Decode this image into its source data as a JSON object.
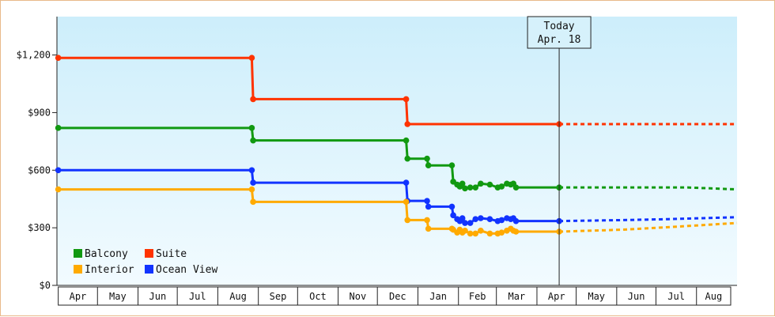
{
  "chart_data": {
    "type": "line",
    "title": "",
    "xlabel": "",
    "ylabel": "",
    "ylim": [
      0,
      1400
    ],
    "yticks": [
      {
        "value": 0,
        "label": "$0"
      },
      {
        "value": 300,
        "label": "$300"
      },
      {
        "value": 600,
        "label": "$600"
      },
      {
        "value": 900,
        "label": "$900"
      },
      {
        "value": 1200,
        "label": "$1,200"
      }
    ],
    "x_range": [
      "2011-03-31",
      "2012-09-01"
    ],
    "x_month_labels": [
      {
        "label": "Apr",
        "start": "2011-04-01"
      },
      {
        "label": "May",
        "start": "2011-05-01"
      },
      {
        "label": "Jun",
        "start": "2011-06-01"
      },
      {
        "label": "Jul",
        "start": "2011-07-01"
      },
      {
        "label": "Aug",
        "start": "2011-08-01"
      },
      {
        "label": "Sep",
        "start": "2011-09-01"
      },
      {
        "label": "Oct",
        "start": "2011-10-01"
      },
      {
        "label": "Nov",
        "start": "2011-11-01"
      },
      {
        "label": "Dec",
        "start": "2011-12-01"
      },
      {
        "label": "Jan",
        "start": "2012-01-01"
      },
      {
        "label": "Feb",
        "start": "2012-02-01"
      },
      {
        "label": "Mar",
        "start": "2012-03-01"
      },
      {
        "label": "Apr",
        "start": "2012-04-01"
      },
      {
        "label": "May",
        "start": "2012-05-01"
      },
      {
        "label": "Jun",
        "start": "2012-06-01"
      },
      {
        "label": "Jul",
        "start": "2012-07-01"
      },
      {
        "label": "Aug",
        "start": "2012-08-01"
      }
    ],
    "grid": false,
    "legend_position": "bottom-left",
    "today_marker": {
      "label_line1": "Today",
      "label_line2": "Apr. 18",
      "date": "2012-04-18"
    },
    "series": [
      {
        "name": "Suite",
        "color": "#ff3300",
        "points": [
          {
            "date": "2011-04-01",
            "value": 1185
          },
          {
            "date": "2011-08-27",
            "value": 1185
          },
          {
            "date": "2011-08-28",
            "value": 970
          },
          {
            "date": "2011-12-23",
            "value": 970
          },
          {
            "date": "2011-12-24",
            "value": 840
          },
          {
            "date": "2012-04-18",
            "value": 840
          }
        ],
        "forecast": [
          {
            "date": "2012-04-18",
            "value": 840
          },
          {
            "date": "2012-09-01",
            "value": 840
          }
        ]
      },
      {
        "name": "Balcony",
        "color": "#119911",
        "points": [
          {
            "date": "2011-04-01",
            "value": 820
          },
          {
            "date": "2011-08-27",
            "value": 820
          },
          {
            "date": "2011-08-28",
            "value": 755
          },
          {
            "date": "2011-12-23",
            "value": 755
          },
          {
            "date": "2011-12-24",
            "value": 660
          },
          {
            "date": "2012-01-08",
            "value": 660
          },
          {
            "date": "2012-01-09",
            "value": 625
          },
          {
            "date": "2012-01-27",
            "value": 625
          },
          {
            "date": "2012-01-28",
            "value": 540
          },
          {
            "date": "2012-01-31",
            "value": 525
          },
          {
            "date": "2012-02-02",
            "value": 515
          },
          {
            "date": "2012-02-04",
            "value": 530
          },
          {
            "date": "2012-02-06",
            "value": 505
          },
          {
            "date": "2012-02-10",
            "value": 510
          },
          {
            "date": "2012-02-14",
            "value": 510
          },
          {
            "date": "2012-02-18",
            "value": 530
          },
          {
            "date": "2012-02-25",
            "value": 525
          },
          {
            "date": "2012-03-02",
            "value": 510
          },
          {
            "date": "2012-03-05",
            "value": 515
          },
          {
            "date": "2012-03-09",
            "value": 530
          },
          {
            "date": "2012-03-12",
            "value": 525
          },
          {
            "date": "2012-03-14",
            "value": 530
          },
          {
            "date": "2012-03-16",
            "value": 510
          },
          {
            "date": "2012-04-18",
            "value": 510
          }
        ],
        "forecast": [
          {
            "date": "2012-04-18",
            "value": 510
          },
          {
            "date": "2012-07-25",
            "value": 510
          },
          {
            "date": "2012-09-01",
            "value": 500
          }
        ]
      },
      {
        "name": "Ocean View",
        "color": "#1133ff",
        "points": [
          {
            "date": "2011-04-01",
            "value": 600
          },
          {
            "date": "2011-08-27",
            "value": 600
          },
          {
            "date": "2011-08-28",
            "value": 535
          },
          {
            "date": "2011-12-23",
            "value": 535
          },
          {
            "date": "2011-12-24",
            "value": 440
          },
          {
            "date": "2012-01-08",
            "value": 440
          },
          {
            "date": "2012-01-09",
            "value": 410
          },
          {
            "date": "2012-01-27",
            "value": 410
          },
          {
            "date": "2012-01-28",
            "value": 365
          },
          {
            "date": "2012-01-31",
            "value": 345
          },
          {
            "date": "2012-02-02",
            "value": 335
          },
          {
            "date": "2012-02-04",
            "value": 350
          },
          {
            "date": "2012-02-06",
            "value": 325
          },
          {
            "date": "2012-02-10",
            "value": 325
          },
          {
            "date": "2012-02-14",
            "value": 345
          },
          {
            "date": "2012-02-18",
            "value": 350
          },
          {
            "date": "2012-02-25",
            "value": 345
          },
          {
            "date": "2012-03-02",
            "value": 335
          },
          {
            "date": "2012-03-05",
            "value": 340
          },
          {
            "date": "2012-03-09",
            "value": 350
          },
          {
            "date": "2012-03-12",
            "value": 345
          },
          {
            "date": "2012-03-14",
            "value": 350
          },
          {
            "date": "2012-03-16",
            "value": 335
          },
          {
            "date": "2012-04-18",
            "value": 335
          }
        ],
        "forecast": [
          {
            "date": "2012-04-18",
            "value": 335
          },
          {
            "date": "2012-06-05",
            "value": 340
          },
          {
            "date": "2012-07-10",
            "value": 345
          },
          {
            "date": "2012-09-01",
            "value": 355
          }
        ]
      },
      {
        "name": "Interior",
        "color": "#ffaa00",
        "points": [
          {
            "date": "2011-04-01",
            "value": 500
          },
          {
            "date": "2011-08-27",
            "value": 500
          },
          {
            "date": "2011-08-28",
            "value": 435
          },
          {
            "date": "2011-12-23",
            "value": 435
          },
          {
            "date": "2011-12-24",
            "value": 340
          },
          {
            "date": "2012-01-08",
            "value": 340
          },
          {
            "date": "2012-01-09",
            "value": 295
          },
          {
            "date": "2012-01-27",
            "value": 295
          },
          {
            "date": "2012-01-28",
            "value": 290
          },
          {
            "date": "2012-01-31",
            "value": 275
          },
          {
            "date": "2012-02-02",
            "value": 290
          },
          {
            "date": "2012-02-04",
            "value": 275
          },
          {
            "date": "2012-02-06",
            "value": 285
          },
          {
            "date": "2012-02-10",
            "value": 270
          },
          {
            "date": "2012-02-14",
            "value": 270
          },
          {
            "date": "2012-02-18",
            "value": 285
          },
          {
            "date": "2012-02-25",
            "value": 270
          },
          {
            "date": "2012-03-02",
            "value": 270
          },
          {
            "date": "2012-03-05",
            "value": 275
          },
          {
            "date": "2012-03-09",
            "value": 285
          },
          {
            "date": "2012-03-12",
            "value": 295
          },
          {
            "date": "2012-03-14",
            "value": 285
          },
          {
            "date": "2012-03-16",
            "value": 280
          },
          {
            "date": "2012-04-18",
            "value": 280
          }
        ],
        "forecast": [
          {
            "date": "2012-04-18",
            "value": 280
          },
          {
            "date": "2012-06-05",
            "value": 290
          },
          {
            "date": "2012-07-15",
            "value": 305
          },
          {
            "date": "2012-09-01",
            "value": 325
          }
        ]
      }
    ],
    "legend": [
      {
        "name": "Balcony",
        "color": "#119911"
      },
      {
        "name": "Suite",
        "color": "#ff3300"
      },
      {
        "name": "Interior",
        "color": "#ffaa00"
      },
      {
        "name": "Ocean View",
        "color": "#1133ff"
      }
    ]
  }
}
